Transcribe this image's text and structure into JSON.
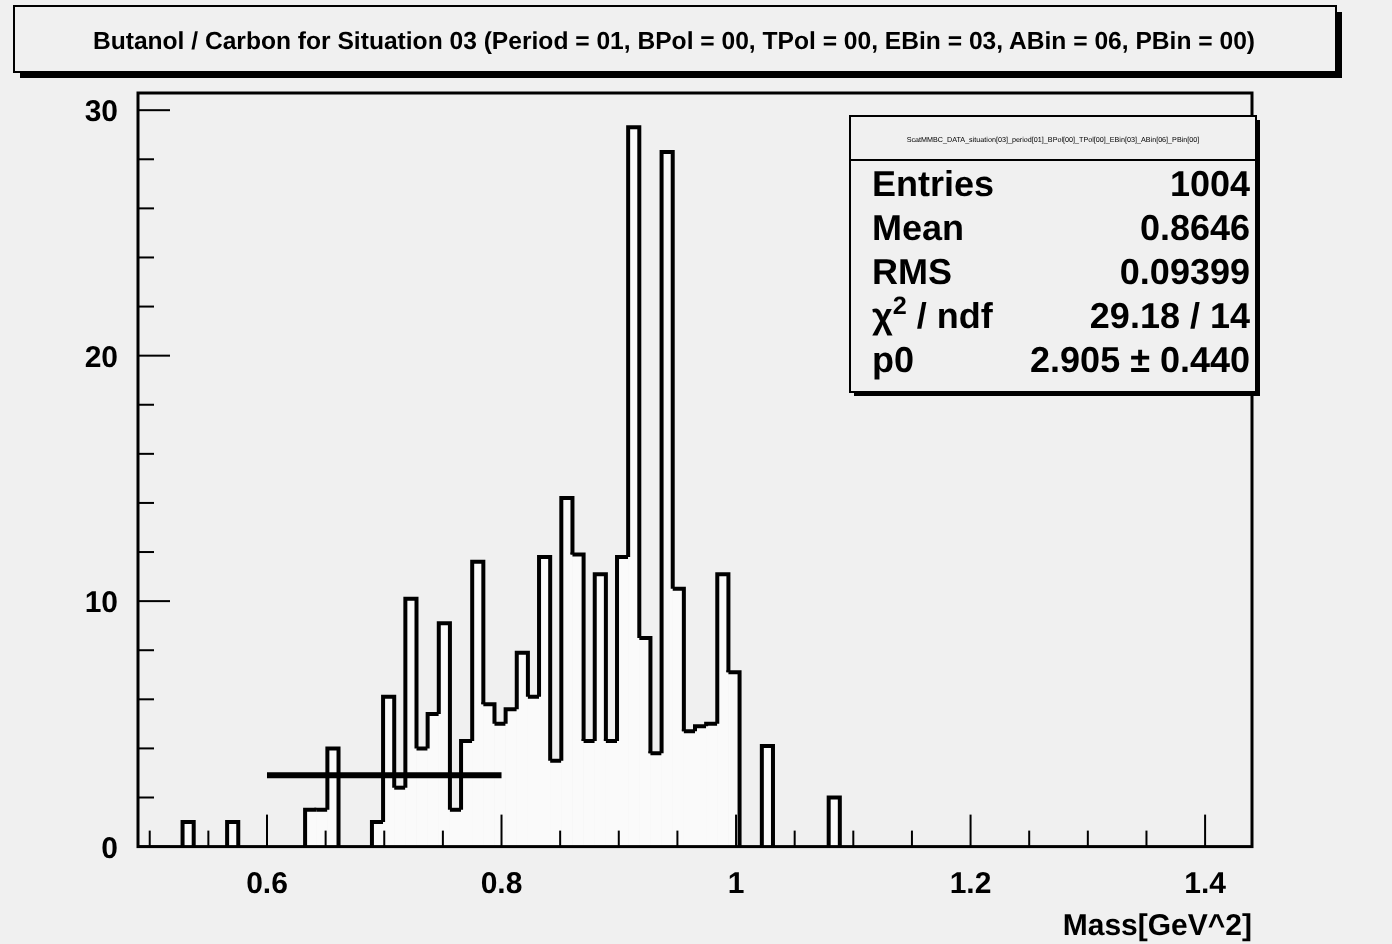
{
  "chart_data": {
    "type": "histogram",
    "title": "Butanol / Carbon for Situation 03 (Period = 01, BPol = 00, TPol = 00, EBin = 03, ABin = 06, PBin = 00)",
    "xlabel": "Mass[GeV^2]",
    "bins": [
      0.528,
      0.5375,
      0.547,
      0.5565,
      0.566,
      0.5755,
      0.585,
      0.5945,
      0.604,
      0.6135,
      0.623,
      0.6325,
      0.642,
      0.6515,
      0.661,
      0.6705,
      0.68,
      0.6895,
      0.699,
      0.7085,
      0.718,
      0.7275,
      0.737,
      0.7465,
      0.756,
      0.7655,
      0.775,
      0.7845,
      0.794,
      0.8035,
      0.813,
      0.8225,
      0.832,
      0.8415,
      0.851,
      0.8605,
      0.87,
      0.8795,
      0.889,
      0.8985,
      0.908,
      0.9175,
      0.927,
      0.9365,
      0.946,
      0.9555,
      0.965,
      0.9745,
      0.984,
      0.9935,
      1.003,
      1.0125,
      1.022,
      1.0315,
      1.041,
      1.0505,
      1.06,
      1.0695,
      1.079,
      1.0885
    ],
    "series": [
      {
        "color": "#000000",
        "values": [
          1,
          0,
          0,
          0,
          1,
          0,
          0,
          0,
          0,
          0,
          0,
          1.5,
          1.5,
          4,
          0,
          0,
          0,
          1,
          6.1,
          2.4,
          10.1,
          4,
          5.4,
          9.1,
          1.5,
          4.3,
          11.6,
          5.8,
          5,
          5.6,
          7.9,
          6.1,
          11.8,
          3.5,
          14.2,
          11.9,
          4.3,
          11.1,
          4.3,
          11.8,
          29.3,
          8.5,
          3.8,
          28.3,
          10.5,
          4.7,
          4.9,
          5,
          11.1,
          7.1,
          0,
          0,
          4.1,
          0,
          0,
          0,
          0,
          0,
          2
        ]
      },
      {
        "type": "line",
        "color": "#000000",
        "x": [
          0.6,
          0.8
        ],
        "values": [
          2.905,
          2.905
        ]
      }
    ],
    "xlim": [
      0.49,
      1.44
    ],
    "ylim": [
      0,
      30.7
    ],
    "xticks": [
      {
        "value": 0.5,
        "label": null
      },
      {
        "value": 0.55,
        "label": null
      },
      0.6,
      {
        "value": 0.65,
        "label": null
      },
      {
        "value": 0.7,
        "label": null
      },
      {
        "value": 0.75,
        "label": null
      },
      0.8,
      {
        "value": 0.85,
        "label": null
      },
      {
        "value": 0.9,
        "label": null
      },
      {
        "value": 0.95,
        "label": null
      },
      1,
      {
        "value": 1.05,
        "label": null
      },
      {
        "value": 1.1,
        "label": null
      },
      {
        "value": 1.15,
        "label": null
      },
      1.2,
      {
        "value": 1.25,
        "label": null
      },
      {
        "value": 1.3,
        "label": null
      },
      {
        "value": 1.35,
        "label": null
      },
      1.4
    ],
    "yticks": [
      0,
      {
        "value": 2,
        "label": null
      },
      {
        "value": 4,
        "label": null
      },
      {
        "value": 6,
        "label": null
      },
      {
        "value": 8,
        "label": null
      },
      10,
      {
        "value": 12,
        "label": null
      },
      {
        "value": 14,
        "label": null
      },
      {
        "value": 16,
        "label": null
      },
      {
        "value": 18,
        "label": null
      },
      20,
      {
        "value": 22,
        "label": null
      },
      {
        "value": 24,
        "label": null
      },
      {
        "value": 26,
        "label": null
      },
      {
        "value": 28,
        "label": null
      },
      30
    ],
    "grid": false,
    "annotations": [
      "ScatMMBC_DATA_situation[03]_period[01]_BPol[00]_TPol[00]_EBin[03]_ABin[06]_PBin[00]",
      "Entries",
      "1004",
      "Mean",
      "0.8646",
      "RMS",
      "0.09399",
      "χ$^{2}$ / ndf",
      "29.18 / 14",
      "p0",
      "2.905 ± 0.440"
    ]
  }
}
